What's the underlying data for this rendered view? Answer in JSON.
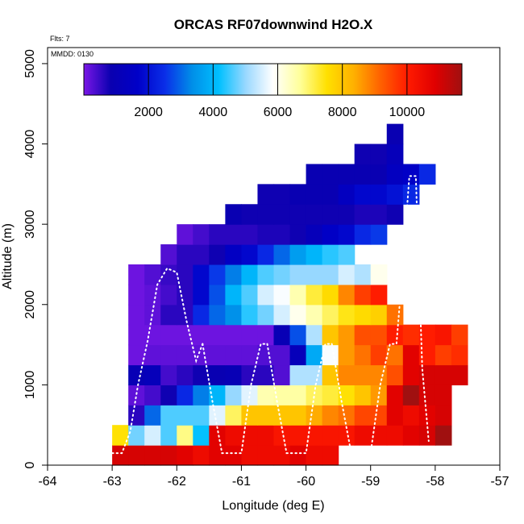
{
  "chart_data": {
    "type": "heatmap",
    "title": "ORCAS RF07downwind H2O.X",
    "subtitle_flights": "Flts: 7",
    "subtitle_date": "MMDD: 0130",
    "xlabel": "Longitude (deg E)",
    "ylabel": "Altitude (m)",
    "xlim": [
      -64,
      -57
    ],
    "ylim": [
      0,
      5200
    ],
    "x_ticks": [
      -64,
      -63,
      -62,
      -61,
      -60,
      -59,
      -58,
      -57
    ],
    "y_ticks": [
      0,
      1000,
      2000,
      3000,
      4000,
      5000
    ],
    "x_tick_labels": [
      "-64",
      "-63",
      "-62",
      "-61",
      "-60",
      "-59",
      "-58",
      "-57"
    ],
    "y_tick_labels": [
      "0",
      "1000",
      "2000",
      "3000",
      "4000",
      "5000"
    ],
    "colorbar": {
      "range": [
        0,
        11700
      ],
      "ticks": [
        2000,
        4000,
        6000,
        8000,
        10000
      ],
      "tick_labels": [
        "2000",
        "4000",
        "6000",
        "8000",
        "10000"
      ],
      "colors": [
        "#7a17e6",
        "#0a00b0",
        "#0000c8",
        "#0a2ee8",
        "#008ee8",
        "#00c0ff",
        "#9ad8ff",
        "#ffffff",
        "#ffff9a",
        "#ffe000",
        "#ffb000",
        "#ff6000",
        "#ff1a00",
        "#e00000",
        "#a01010"
      ]
    },
    "cell_size": {
      "lon": 0.25,
      "alt": 250
    },
    "rows": [
      {
        "alt": 0,
        "lon0": -63.0,
        "values": [
          11000,
          11000,
          11000,
          11000,
          10800,
          10500,
          10800,
          10800,
          10500,
          10500,
          10500,
          10800,
          10500,
          10500
        ]
      },
      {
        "alt": 250,
        "lon0": -63.0,
        "values": [
          7500,
          4800,
          5500,
          4600,
          6800,
          4200,
          10800,
          10500,
          10500,
          10500,
          10200,
          10200,
          10200,
          10200,
          10200,
          10500,
          10500,
          10500,
          10800,
          11000,
          11700
        ]
      },
      {
        "alt": 500,
        "lon0": -62.75,
        "values": [
          600,
          3000,
          4600,
          4600,
          4600,
          5600,
          7000,
          8000,
          8000,
          8000,
          8000,
          8400,
          8800,
          9000,
          9500,
          9500,
          10800,
          10500,
          10800,
          11000
        ]
      },
      {
        "alt": 750,
        "lon0": -62.75,
        "values": [
          200,
          400,
          800,
          2400,
          3200,
          4000,
          5000,
          5600,
          6500,
          6600,
          6600,
          7000,
          7200,
          7500,
          8000,
          8600,
          10800,
          11700,
          11000,
          11000
        ]
      },
      {
        "alt": 1000,
        "lon0": -62.75,
        "values": [
          1000,
          1200,
          400,
          600,
          800,
          900,
          1000,
          600,
          600,
          300,
          5200,
          5200,
          8000,
          8800,
          8800,
          8800,
          9400,
          10800,
          11000,
          11000,
          11000
        ]
      },
      {
        "alt": 1250,
        "lon0": -62.75,
        "values": [
          100,
          200,
          200,
          200,
          200,
          200,
          200,
          200,
          300,
          300,
          1200,
          3800,
          5800,
          8600,
          9000,
          9600,
          9000,
          10800,
          10000,
          9600,
          9800
        ]
      },
      {
        "alt": 1500,
        "lon0": -62.75,
        "values": [
          100,
          100,
          100,
          100,
          100,
          100,
          100,
          100,
          100,
          1000,
          2800,
          5200,
          8000,
          8600,
          9400,
          9400,
          10000,
          9800,
          10000,
          10200,
          9600
        ]
      },
      {
        "alt": 1750,
        "lon0": -62.75,
        "values": [
          100,
          200,
          600,
          600,
          2400,
          3000,
          3400,
          4400,
          4800,
          5500,
          6000,
          6500,
          7000,
          7400,
          7600,
          7800,
          9000
        ]
      },
      {
        "alt": 2000,
        "lon0": -62.75,
        "values": [
          100,
          200,
          400,
          600,
          1800,
          2800,
          4000,
          4600,
          5500,
          5800,
          6500,
          7200,
          7600,
          8800,
          9600,
          10000
        ]
      },
      {
        "alt": 2250,
        "lon0": -62.75,
        "values": [
          100,
          300,
          500,
          600,
          1800,
          2600,
          3200,
          4000,
          4600,
          4800,
          5000,
          5000,
          5000,
          5500,
          5200,
          6000
        ]
      },
      {
        "alt": 2500,
        "lon0": -62.25,
        "values": [
          300,
          600,
          600,
          800,
          1500,
          1800,
          2400,
          3000,
          3600,
          4000,
          4400,
          4600
        ]
      },
      {
        "alt": 2750,
        "lon0": -62.0,
        "values": [
          200,
          400,
          600,
          600,
          600,
          700,
          700,
          800,
          1200,
          1600,
          1800,
          2400,
          2600
        ]
      },
      {
        "alt": 3000,
        "lon0": -61.25,
        "values": [
          900,
          800,
          800,
          800,
          800,
          800,
          800,
          800,
          700,
          700,
          800
        ]
      },
      {
        "alt": 3250,
        "lon0": -60.75,
        "values": [
          800,
          800,
          900,
          900,
          900,
          1400,
          1800,
          1800,
          2000,
          2400
        ]
      },
      {
        "alt": 3500,
        "lon0": -60.0,
        "values": [
          900,
          900,
          900,
          900,
          900,
          1400,
          1600,
          2400
        ]
      },
      {
        "alt": 3750,
        "lon0": -59.25,
        "values": [
          800,
          800,
          1200
        ]
      },
      {
        "alt": 4000,
        "lon0": -58.75,
        "values": [
          900
        ]
      }
    ],
    "flight_track_segments": [
      {
        "lon": [
          -63.0,
          -62.85,
          -62.72,
          -62.6,
          -62.45,
          -62.3,
          -62.15,
          -62.0,
          -61.85,
          -61.7,
          -61.6
        ],
        "alt": [
          150,
          150,
          420,
          1000,
          1550,
          2250,
          2450,
          2400,
          1800,
          1300,
          1510
        ]
      },
      {
        "lon": [
          -61.6,
          -61.45,
          -61.3,
          -61.15,
          -61.0,
          -60.85,
          -60.7,
          -60.6
        ],
        "alt": [
          1510,
          800,
          150,
          150,
          150,
          1000,
          1510,
          1510
        ]
      },
      {
        "lon": [
          -60.6,
          -60.45,
          -60.3,
          -60.15,
          -60.0,
          -59.85,
          -59.7,
          -59.6
        ],
        "alt": [
          1510,
          800,
          150,
          150,
          150,
          1000,
          1510,
          1510
        ]
      },
      {
        "lon": [
          -59.6,
          -59.45,
          -59.3,
          -59.15,
          -59.0,
          -58.85,
          -58.7,
          -58.6,
          -58.5,
          -58.4,
          -58.3,
          -58.2,
          -58.1
        ],
        "alt": [
          1510,
          800,
          150,
          150,
          150,
          1000,
          1510,
          1510,
          2500,
          3600,
          3600,
          1200,
          300
        ]
      }
    ]
  }
}
